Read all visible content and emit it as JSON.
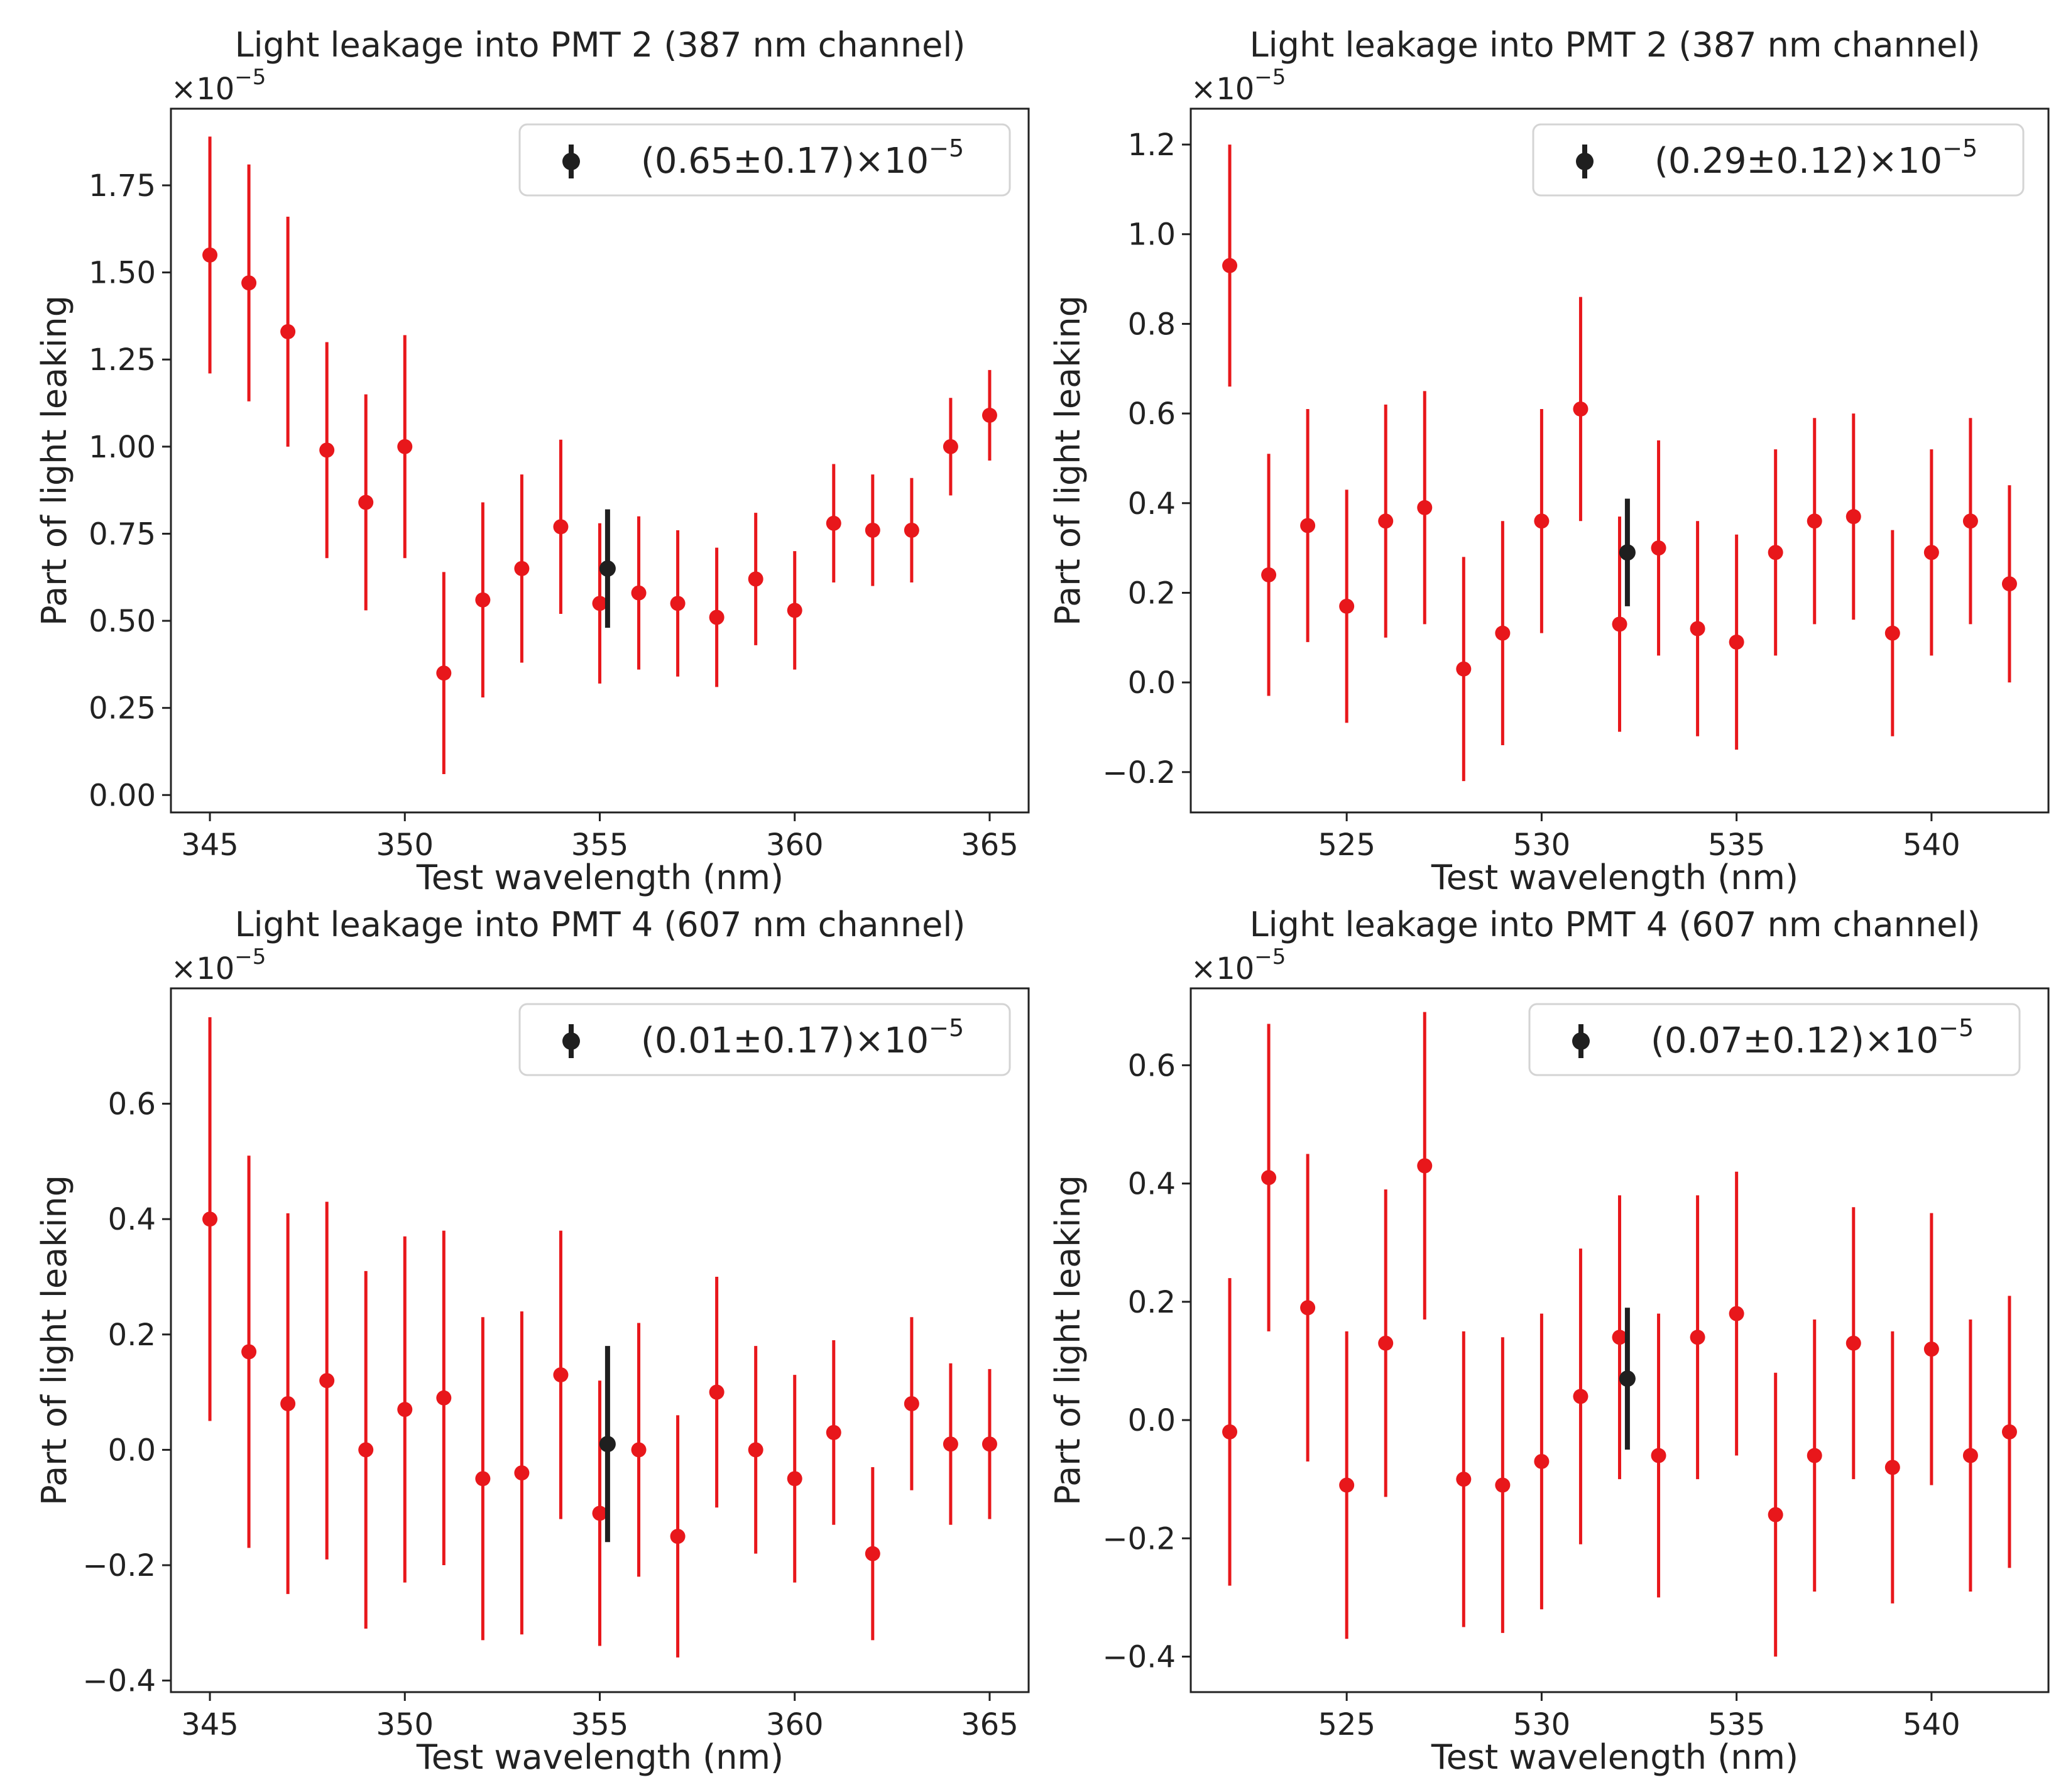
{
  "figure": {
    "colors": {
      "data": "#e8171b",
      "mean": "#1f1f1f",
      "text": "#222222",
      "axis": "#222222"
    }
  },
  "chart_data": [
    {
      "type": "scatter",
      "title": "Light leakage into PMT 2 (387 nm channel)",
      "xlabel": "Test wavelength (nm)",
      "ylabel": "Part of light leaking",
      "scale_label": "×10",
      "scale_exponent": "−5",
      "xlim": [
        344,
        366
      ],
      "ylim": [
        -0.05,
        1.97
      ],
      "xticks": [
        345,
        350,
        355,
        360,
        365
      ],
      "xtick_labels": [
        "345",
        "350",
        "355",
        "360",
        "365"
      ],
      "yticks": [
        0.0,
        0.25,
        0.5,
        0.75,
        1.0,
        1.25,
        1.5,
        1.75
      ],
      "ytick_labels": [
        "0.00",
        "0.25",
        "0.50",
        "0.75",
        "1.00",
        "1.25",
        "1.50",
        "1.75"
      ],
      "series": [
        {
          "name": "measurements",
          "x": [
            345,
            346,
            347,
            348,
            349,
            350,
            351,
            352,
            353,
            354,
            355,
            356,
            357,
            358,
            359,
            360,
            361,
            362,
            363,
            364,
            365
          ],
          "y": [
            1.55,
            1.47,
            1.33,
            0.99,
            0.84,
            1.0,
            0.35,
            0.56,
            0.65,
            0.77,
            0.55,
            0.58,
            0.55,
            0.51,
            0.62,
            0.53,
            0.78,
            0.76,
            0.76,
            1.0,
            1.09
          ],
          "yerr": [
            0.34,
            0.34,
            0.33,
            0.31,
            0.31,
            0.32,
            0.29,
            0.28,
            0.27,
            0.25,
            0.23,
            0.22,
            0.21,
            0.2,
            0.19,
            0.17,
            0.17,
            0.16,
            0.15,
            0.14,
            0.13
          ]
        }
      ],
      "mean": {
        "x": 355.2,
        "y": 0.65,
        "yerr": 0.17
      },
      "legend": {
        "label": "(0.65±0.17)×10",
        "exponent": "−5",
        "position": "top-right"
      }
    },
    {
      "type": "scatter",
      "title": "Light leakage into PMT 2 (387 nm channel)",
      "xlabel": "Test wavelength (nm)",
      "ylabel": "Part of light leaking",
      "scale_label": "×10",
      "scale_exponent": "−5",
      "xlim": [
        521,
        543
      ],
      "ylim": [
        -0.29,
        1.28
      ],
      "xticks": [
        525,
        530,
        535,
        540
      ],
      "xtick_labels": [
        "525",
        "530",
        "535",
        "540"
      ],
      "yticks": [
        -0.2,
        0.0,
        0.2,
        0.4,
        0.6,
        0.8,
        1.0,
        1.2
      ],
      "ytick_labels": [
        "−0.2",
        "0.0",
        "0.2",
        "0.4",
        "0.6",
        "0.8",
        "1.0",
        "1.2"
      ],
      "series": [
        {
          "name": "measurements",
          "x": [
            522,
            523,
            524,
            525,
            526,
            527,
            528,
            529,
            530,
            531,
            532,
            533,
            534,
            535,
            536,
            537,
            538,
            539,
            540,
            541,
            542
          ],
          "y": [
            0.93,
            0.24,
            0.35,
            0.17,
            0.36,
            0.39,
            0.03,
            0.11,
            0.36,
            0.61,
            0.13,
            0.3,
            0.12,
            0.09,
            0.29,
            0.36,
            0.37,
            0.11,
            0.29,
            0.36,
            0.22
          ],
          "yerr": [
            0.27,
            0.27,
            0.26,
            0.26,
            0.26,
            0.26,
            0.25,
            0.25,
            0.25,
            0.25,
            0.24,
            0.24,
            0.24,
            0.24,
            0.23,
            0.23,
            0.23,
            0.23,
            0.23,
            0.23,
            0.22
          ]
        }
      ],
      "mean": {
        "x": 532.2,
        "y": 0.29,
        "yerr": 0.12
      },
      "legend": {
        "label": "(0.29±0.12)×10",
        "exponent": "−5",
        "position": "top-right"
      }
    },
    {
      "type": "scatter",
      "title": "Light leakage into PMT 4 (607 nm channel)",
      "xlabel": "Test wavelength (nm)",
      "ylabel": "Part of light leaking",
      "scale_label": "×10",
      "scale_exponent": "−5",
      "xlim": [
        344,
        366
      ],
      "ylim": [
        -0.42,
        0.8
      ],
      "xticks": [
        345,
        350,
        355,
        360,
        365
      ],
      "xtick_labels": [
        "345",
        "350",
        "355",
        "360",
        "365"
      ],
      "yticks": [
        -0.4,
        -0.2,
        0.0,
        0.2,
        0.4,
        0.6
      ],
      "ytick_labels": [
        "−0.4",
        "−0.2",
        "0.0",
        "0.2",
        "0.4",
        "0.6"
      ],
      "series": [
        {
          "name": "measurements",
          "x": [
            345,
            346,
            347,
            348,
            349,
            350,
            351,
            352,
            353,
            354,
            355,
            356,
            357,
            358,
            359,
            360,
            361,
            362,
            363,
            364,
            365
          ],
          "y": [
            0.4,
            0.17,
            0.08,
            0.12,
            0.0,
            0.07,
            0.09,
            -0.05,
            -0.04,
            0.13,
            -0.11,
            0.0,
            -0.15,
            0.1,
            0.0,
            -0.05,
            0.03,
            -0.18,
            0.08,
            0.01,
            0.01
          ],
          "yerr": [
            0.35,
            0.34,
            0.33,
            0.31,
            0.31,
            0.3,
            0.29,
            0.28,
            0.28,
            0.25,
            0.23,
            0.22,
            0.21,
            0.2,
            0.18,
            0.18,
            0.16,
            0.15,
            0.15,
            0.14,
            0.13
          ]
        }
      ],
      "mean": {
        "x": 355.2,
        "y": 0.01,
        "yerr": 0.17
      },
      "legend": {
        "label": "(0.01±0.17)×10",
        "exponent": "−5",
        "position": "top-right"
      }
    },
    {
      "type": "scatter",
      "title": "Light leakage into PMT 4 (607 nm channel)",
      "xlabel": "Test wavelength (nm)",
      "ylabel": "Part of light leaking",
      "scale_label": "×10",
      "scale_exponent": "−5",
      "xlim": [
        521,
        543
      ],
      "ylim": [
        -0.46,
        0.73
      ],
      "xticks": [
        525,
        530,
        535,
        540
      ],
      "xtick_labels": [
        "525",
        "530",
        "535",
        "540"
      ],
      "yticks": [
        -0.4,
        -0.2,
        0.0,
        0.2,
        0.4,
        0.6
      ],
      "ytick_labels": [
        "−0.4",
        "−0.2",
        "0.0",
        "0.2",
        "0.4",
        "0.6"
      ],
      "series": [
        {
          "name": "measurements",
          "x": [
            522,
            523,
            524,
            525,
            526,
            527,
            528,
            529,
            530,
            531,
            532,
            533,
            534,
            535,
            536,
            537,
            538,
            539,
            540,
            541,
            542
          ],
          "y": [
            -0.02,
            0.41,
            0.19,
            -0.11,
            0.13,
            0.43,
            -0.1,
            -0.11,
            -0.07,
            0.04,
            0.14,
            -0.06,
            0.14,
            0.18,
            -0.16,
            -0.06,
            0.13,
            -0.08,
            0.12,
            -0.06,
            -0.02
          ],
          "yerr": [
            0.26,
            0.26,
            0.26,
            0.26,
            0.26,
            0.26,
            0.25,
            0.25,
            0.25,
            0.25,
            0.24,
            0.24,
            0.24,
            0.24,
            0.24,
            0.23,
            0.23,
            0.23,
            0.23,
            0.23,
            0.23
          ]
        }
      ],
      "mean": {
        "x": 532.2,
        "y": 0.07,
        "yerr": 0.12
      },
      "legend": {
        "label": "(0.07±0.12)×10",
        "exponent": "−5",
        "position": "top-right"
      }
    }
  ]
}
